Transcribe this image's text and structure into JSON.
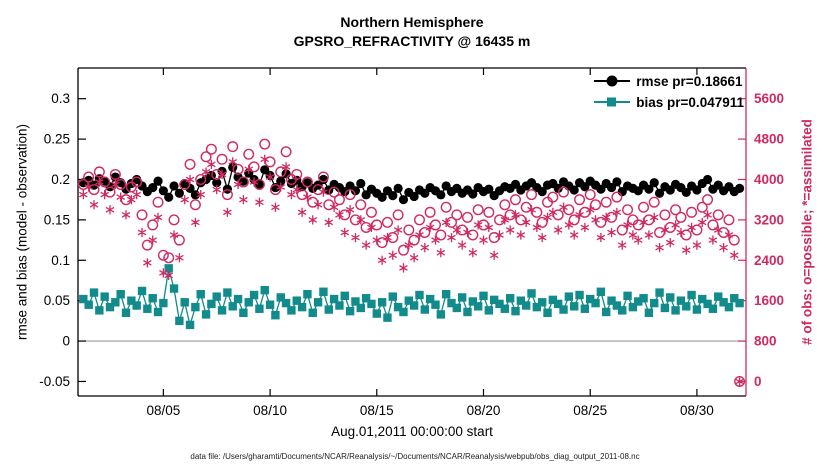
{
  "chart_data": {
    "type": "line",
    "title": "Northern Hemisphere",
    "subtitle": "GPSRO_REFRACTIVITY @ 16435 m",
    "xlabel": "Aug.01,2011 00:00:00 start",
    "ylabel_left": "rmse and bias (model - observation)",
    "ylabel_right": "# of obs: o=possible; *=assimilated",
    "caption": "data file: /Users/gharamti/Documents/NCAR/Reanalysis/~/Documents/NCAR/Reanalysis/webpub/obs_diag_output_2011-08.nc",
    "colors": {
      "rmse": "#000000",
      "bias": "#128b8d",
      "obs": "#d02963",
      "zero_line": "#9a9a9a",
      "axis": "#000000"
    },
    "legend": [
      {
        "label": "rmse pr=0.18661",
        "series": "rmse"
      },
      {
        "label": "bias pr=0.047911",
        "series": "bias"
      }
    ],
    "axes": {
      "xlim": [
        1,
        32.3
      ],
      "ylim_left": [
        -0.068,
        0.338
      ],
      "right_to_left": {
        "scale": 16000,
        "offset": -0.05
      },
      "xticks": [
        {
          "value": 5,
          "label": "08/05"
        },
        {
          "value": 10,
          "label": "08/10"
        },
        {
          "value": 15,
          "label": "08/15"
        },
        {
          "value": 20,
          "label": "08/20"
        },
        {
          "value": 25,
          "label": "08/25"
        },
        {
          "value": 30,
          "label": "08/30"
        }
      ],
      "yticks_left": [
        {
          "value": -0.05,
          "label": "-0.05"
        },
        {
          "value": 0,
          "label": "0"
        },
        {
          "value": 0.05,
          "label": "0.05"
        },
        {
          "value": 0.1,
          "label": "0.1"
        },
        {
          "value": 0.15,
          "label": "0.15"
        },
        {
          "value": 0.2,
          "label": "0.2"
        },
        {
          "value": 0.25,
          "label": "0.25"
        },
        {
          "value": 0.3,
          "label": "0.3"
        }
      ],
      "yticks_right": [
        {
          "value": 0,
          "label": "0"
        },
        {
          "value": 800,
          "label": "800"
        },
        {
          "value": 1600,
          "label": "1600"
        },
        {
          "value": 2400,
          "label": "2400"
        },
        {
          "value": 3200,
          "label": "3200"
        },
        {
          "value": 4000,
          "label": "4000"
        },
        {
          "value": 4800,
          "label": "4800"
        },
        {
          "value": 5600,
          "label": "5600"
        }
      ]
    },
    "x": {
      "start": 1.25,
      "step": 0.25,
      "count": 124
    },
    "series": [
      {
        "name": "rmse",
        "axis": "left",
        "marker": "filled-circle",
        "line": true,
        "color": "#000000",
        "values": [
          0.196,
          0.199,
          0.193,
          0.201,
          0.198,
          0.191,
          0.203,
          0.196,
          0.188,
          0.195,
          0.2,
          0.192,
          0.185,
          0.19,
          0.198,
          0.186,
          0.178,
          0.192,
          0.183,
          0.195,
          0.189,
          0.181,
          0.196,
          0.2,
          0.205,
          0.196,
          0.21,
          0.188,
          0.215,
          0.203,
          0.198,
          0.208,
          0.2,
          0.194,
          0.212,
          0.205,
          0.19,
          0.198,
          0.207,
          0.195,
          0.199,
          0.191,
          0.196,
          0.189,
          0.193,
          0.2,
          0.187,
          0.194,
          0.19,
          0.185,
          0.192,
          0.186,
          0.195,
          0.181,
          0.188,
          0.183,
          0.178,
          0.186,
          0.18,
          0.189,
          0.175,
          0.184,
          0.179,
          0.187,
          0.183,
          0.19,
          0.186,
          0.181,
          0.192,
          0.185,
          0.189,
          0.183,
          0.187,
          0.182,
          0.19,
          0.185,
          0.188,
          0.18,
          0.186,
          0.191,
          0.189,
          0.194,
          0.187,
          0.192,
          0.196,
          0.19,
          0.185,
          0.193,
          0.195,
          0.189,
          0.197,
          0.192,
          0.187,
          0.196,
          0.191,
          0.198,
          0.193,
          0.188,
          0.195,
          0.19,
          0.197,
          0.185,
          0.192,
          0.189,
          0.186,
          0.193,
          0.188,
          0.196,
          0.183,
          0.191,
          0.187,
          0.194,
          0.19,
          0.184,
          0.192,
          0.187,
          0.195,
          0.2,
          0.188,
          0.193,
          0.186,
          0.191,
          0.185,
          0.189
        ]
      },
      {
        "name": "bias",
        "axis": "left",
        "marker": "filled-square",
        "line": true,
        "color": "#128b8d",
        "values": [
          0.052,
          0.045,
          0.06,
          0.038,
          0.055,
          0.042,
          0.048,
          0.058,
          0.035,
          0.05,
          0.044,
          0.062,
          0.04,
          0.053,
          0.036,
          0.047,
          0.09,
          0.065,
          0.025,
          0.048,
          0.02,
          0.042,
          0.058,
          0.033,
          0.046,
          0.055,
          0.038,
          0.06,
          0.043,
          0.052,
          0.035,
          0.048,
          0.057,
          0.04,
          0.063,
          0.045,
          0.032,
          0.054,
          0.047,
          0.038,
          0.05,
          0.042,
          0.058,
          0.035,
          0.048,
          0.061,
          0.039,
          0.052,
          0.044,
          0.056,
          0.037,
          0.049,
          0.041,
          0.053,
          0.046,
          0.034,
          0.048,
          0.029,
          0.055,
          0.042,
          0.036,
          0.05,
          0.044,
          0.057,
          0.039,
          0.052,
          0.045,
          0.033,
          0.058,
          0.047,
          0.041,
          0.054,
          0.036,
          0.049,
          0.043,
          0.056,
          0.038,
          0.051,
          0.046,
          0.04,
          0.053,
          0.037,
          0.05,
          0.044,
          0.059,
          0.042,
          0.048,
          0.035,
          0.051,
          0.046,
          0.039,
          0.055,
          0.043,
          0.057,
          0.04,
          0.052,
          0.047,
          0.061,
          0.036,
          0.05,
          0.044,
          0.038,
          0.056,
          0.042,
          0.049,
          0.053,
          0.035,
          0.047,
          0.06,
          0.041,
          0.054,
          0.038,
          0.05,
          0.043,
          0.057,
          0.039,
          0.052,
          0.046,
          0.04,
          0.055,
          0.048,
          0.042,
          0.053,
          0.047
        ]
      },
      {
        "name": "possible",
        "axis": "right",
        "marker": "open-circle",
        "line": false,
        "color": "#d02963",
        "values": [
          3900,
          4050,
          3800,
          4150,
          3950,
          3750,
          4100,
          3900,
          3600,
          3850,
          3950,
          3300,
          2700,
          3100,
          3550,
          2500,
          2450,
          3200,
          2800,
          3900,
          4300,
          3500,
          4000,
          4450,
          4600,
          4100,
          4400,
          3700,
          4650,
          4200,
          3950,
          4500,
          4250,
          3900,
          4700,
          4350,
          3800,
          4150,
          4550,
          4000,
          4100,
          3700,
          3950,
          3550,
          3800,
          4050,
          3500,
          3750,
          3600,
          3300,
          3700,
          3200,
          3500,
          3050,
          3350,
          3100,
          2750,
          3150,
          2850,
          3300,
          2600,
          3000,
          2800,
          3200,
          2950,
          3350,
          3100,
          2900,
          3450,
          3150,
          3300,
          3000,
          3250,
          2900,
          3400,
          3100,
          3350,
          2850,
          3200,
          3500,
          3300,
          3600,
          3200,
          3450,
          3700,
          3350,
          3150,
          3550,
          3650,
          3300,
          3750,
          3400,
          3200,
          3600,
          3350,
          3700,
          3500,
          3150,
          3550,
          3250,
          3650,
          3000,
          3400,
          3200,
          3100,
          3450,
          3200,
          3550,
          2950,
          3300,
          3050,
          3400,
          3250,
          2900,
          3350,
          3000,
          3450,
          3600,
          3100,
          3300,
          2950,
          3200,
          2800,
          0
        ]
      },
      {
        "name": "assimilated",
        "axis": "right",
        "marker": "asterisk",
        "line": false,
        "color": "#d02963",
        "values": [
          3700,
          3850,
          3500,
          3950,
          3700,
          3400,
          3900,
          3650,
          3300,
          3600,
          3700,
          2950,
          2350,
          2800,
          3250,
          2150,
          2100,
          2900,
          2450,
          3600,
          4000,
          3150,
          3700,
          4150,
          4300,
          3800,
          4100,
          3350,
          4350,
          3900,
          3600,
          4200,
          3950,
          3550,
          4400,
          4050,
          3450,
          3850,
          4250,
          3700,
          3800,
          3350,
          3650,
          3200,
          3500,
          3750,
          3150,
          3450,
          3300,
          2950,
          3400,
          2850,
          3200,
          2700,
          3050,
          2800,
          2400,
          2850,
          2500,
          3000,
          2250,
          2700,
          2450,
          2900,
          2650,
          3050,
          2800,
          2550,
          3150,
          2850,
          3000,
          2700,
          2950,
          2550,
          3100,
          2800,
          3050,
          2500,
          2900,
          3200,
          3000,
          3300,
          2900,
          3150,
          3400,
          3050,
          2850,
          3250,
          3350,
          3000,
          3450,
          3100,
          2900,
          3300,
          3050,
          3400,
          3200,
          2850,
          3250,
          2950,
          3350,
          2700,
          3100,
          2900,
          2800,
          3150,
          2900,
          3250,
          2650,
          3000,
          2750,
          3100,
          2950,
          2600,
          3050,
          2700,
          3150,
          3300,
          2800,
          3000,
          2650,
          2900,
          2500,
          0
        ]
      }
    ]
  }
}
